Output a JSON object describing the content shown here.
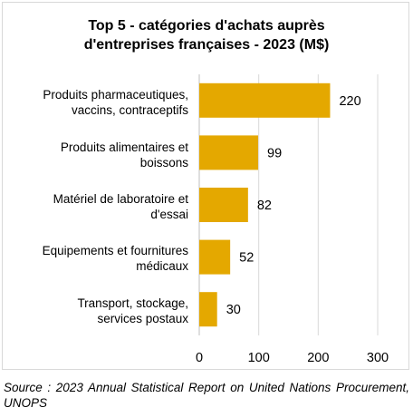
{
  "chart_data": {
    "type": "bar",
    "orientation": "horizontal",
    "title_lines": [
      "Top 5 - catégories d'achats auprès",
      "d'entreprises françaises - 2023 (M$)"
    ],
    "categories": [
      "Produits pharmaceutiques,\nvaccins, contraceptifs",
      "Produits alimentaires et\nboissons",
      "Matériel de laboratoire et\nd'essai",
      "Equipements et fournitures\nmédicaux",
      "Transport, stockage,\nservices postaux"
    ],
    "values": [
      220,
      99,
      82,
      52,
      30
    ],
    "xlim": [
      0,
      300
    ],
    "xticks": [
      0,
      100,
      200,
      300
    ],
    "grid": true,
    "legend": "none",
    "bar_color": "#E4A800",
    "grid_color": "#d9d9d9"
  },
  "source": "Source : 2023 Annual Statistical Report on United Nations Procurement, UNOPS"
}
